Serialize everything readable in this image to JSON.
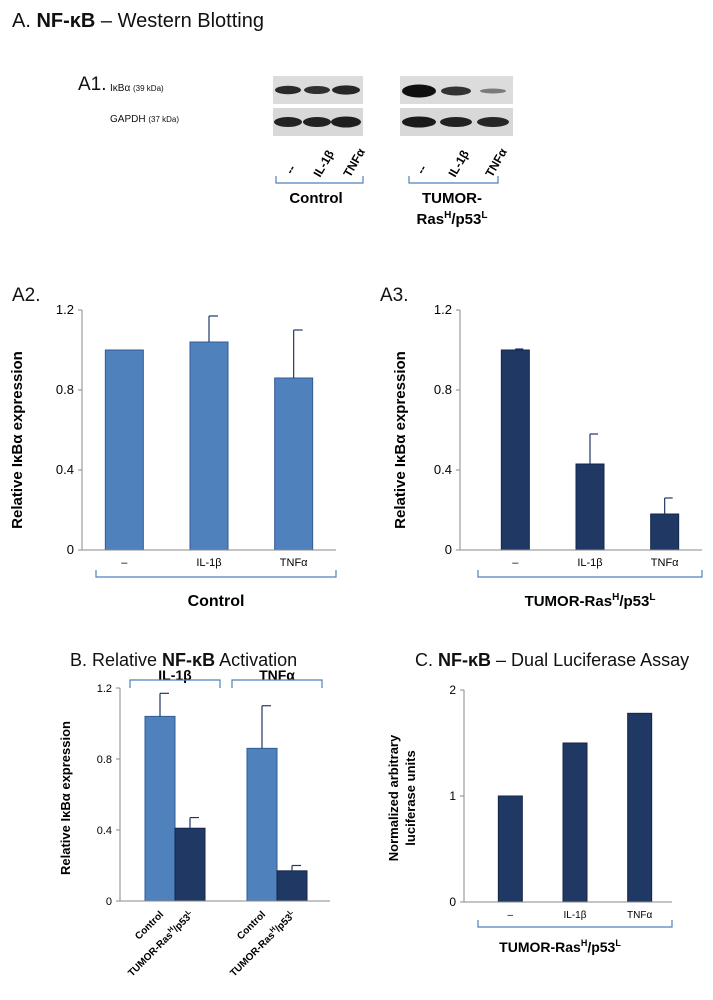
{
  "section_a": {
    "prefix": "A. ",
    "bold": "NF-κB",
    "suffix": " – Western Blotting"
  },
  "section_b": {
    "prefix": "B. Relative ",
    "bold": "NF-κB",
    "suffix": " Activation"
  },
  "section_c": {
    "prefix": "C. ",
    "bold": "NF-κB",
    "suffix": " – Dual Luciferase Assay"
  },
  "blot": {
    "panel_label": "A1.",
    "rows": [
      {
        "name": "IκBα",
        "kda": "(39 kDa)"
      },
      {
        "name": "GAPDH",
        "kda": "(37 kDa)"
      }
    ],
    "lanes": [
      "--",
      "IL-1β",
      "TNFα",
      "--",
      "IL-1β",
      "TNFα"
    ],
    "group_control": "Control",
    "group_tumor_line1": "TUMOR-",
    "group_tumor_line2": "Ras",
    "group_tumor_sup1": "H",
    "group_tumor_mid": "/p53",
    "group_tumor_sup2": "L",
    "colors": {
      "band": "#1e1e1e",
      "membrane": "#dcdcdc",
      "bracket": "#4f81bd"
    }
  },
  "chart_data": [
    {
      "id": "A2",
      "panel_label": "A2.",
      "type": "bar",
      "categories": [
        "–",
        "IL-1β",
        "TNFα"
      ],
      "values": [
        1.0,
        1.04,
        0.86
      ],
      "errors": [
        0,
        0.13,
        0.24
      ],
      "ylabel": "Relative IκBα expression",
      "yticks": [
        "0",
        "0.4",
        "0.8",
        "1.2"
      ],
      "ylim": [
        0,
        1.2
      ],
      "group_label": "Control",
      "color": "#4f81bd"
    },
    {
      "id": "A3",
      "panel_label": "A3.",
      "type": "bar",
      "categories": [
        "–",
        "IL-1β",
        "TNFα"
      ],
      "values": [
        1.0,
        0.43,
        0.18
      ],
      "errors": [
        0.005,
        0.15,
        0.08
      ],
      "ylabel": "Relative IκBα expression",
      "yticks": [
        "0",
        "0.4",
        "0.8",
        "1.2"
      ],
      "ylim": [
        0,
        1.2
      ],
      "group_label_main": "TUMOR-Ras",
      "group_label_sup1": "H",
      "group_label_mid": "/p53",
      "group_label_sup2": "L",
      "color": "#1f3864"
    },
    {
      "id": "B",
      "type": "bar",
      "groups": [
        "IL-1β",
        "TNFα"
      ],
      "series": [
        {
          "name": "Control",
          "values": [
            1.04,
            0.86
          ],
          "errors": [
            0.13,
            0.24
          ],
          "color": "#4f81bd"
        },
        {
          "name": "TUMOR-RasH/p53L",
          "values": [
            0.41,
            0.17
          ],
          "errors": [
            0.06,
            0.03
          ],
          "color": "#1f3864"
        }
      ],
      "xtick_control": "Control",
      "xtick_tumor_main": "TUMOR-Ras",
      "xtick_tumor_sup1": "H",
      "xtick_tumor_mid": "/p53",
      "xtick_tumor_sup2": "L",
      "ylabel": "Relative IκBα expression",
      "yticks": [
        "0",
        "0.4",
        "0.8",
        "1.2"
      ],
      "ylim": [
        0,
        1.2
      ]
    },
    {
      "id": "C",
      "type": "bar",
      "categories": [
        "–",
        "IL-1β",
        "TNFα"
      ],
      "values": [
        1.0,
        1.5,
        1.78
      ],
      "ylabel_line1": "Normalized arbitrary",
      "ylabel_line2": "luciferase units",
      "yticks": [
        "0",
        "1",
        "2"
      ],
      "ylim": [
        0,
        2
      ],
      "group_label_main": "TUMOR-Ras",
      "group_label_sup1": "H",
      "group_label_mid": "/p53",
      "group_label_sup2": "L",
      "color": "#1f3864"
    }
  ]
}
